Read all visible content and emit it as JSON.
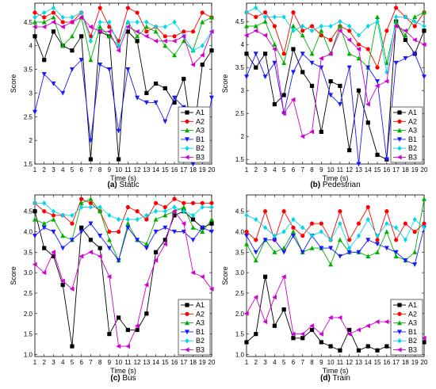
{
  "series_styles": [
    {
      "name": "A1",
      "color": "#000000",
      "marker": "square"
    },
    {
      "name": "A2",
      "color": "#ff0000",
      "marker": "circle"
    },
    {
      "name": "A3",
      "color": "#00b000",
      "marker": "triangle-up"
    },
    {
      "name": "B1",
      "color": "#1a1aff",
      "marker": "triangle-down"
    },
    {
      "name": "B2",
      "color": "#00d8e8",
      "marker": "diamond"
    },
    {
      "name": "B3",
      "color": "#d000d0",
      "marker": "triangle-left"
    }
  ],
  "chart_data": [
    {
      "type": "line",
      "caption_letter": "(a)",
      "caption_text": " Static",
      "xlabel": "Time (s)",
      "ylabel": "Score",
      "x": [
        1,
        2,
        3,
        4,
        5,
        6,
        7,
        8,
        9,
        10,
        11,
        12,
        13,
        14,
        15,
        16,
        17,
        18,
        19,
        20
      ],
      "xlim": [
        1,
        20
      ],
      "ylim": [
        1.5,
        4.9
      ],
      "yticks": [
        "1.5",
        "2",
        "2.5",
        "3",
        "3.5",
        "4",
        "4.5"
      ],
      "ytick_values": [
        1.5,
        2,
        2.5,
        3,
        3.5,
        4,
        4.5
      ],
      "legend": "bottom-right",
      "series": [
        {
          "name": "A1",
          "values": [
            4.2,
            3.7,
            4.3,
            4.0,
            3.9,
            4.2,
            1.6,
            4.3,
            4.2,
            1.6,
            4.3,
            4.1,
            3.0,
            3.2,
            3.1,
            2.8,
            3.3,
            2.0,
            3.6,
            3.9
          ]
        },
        {
          "name": "A2",
          "values": [
            4.7,
            4.6,
            4.7,
            4.5,
            4.5,
            4.7,
            4.2,
            4.8,
            4.4,
            4.1,
            4.8,
            4.7,
            4.3,
            4.4,
            4.2,
            4.2,
            4.3,
            4.3,
            4.7,
            4.6
          ]
        },
        {
          "name": "A3",
          "values": [
            4.5,
            4.5,
            4.6,
            4.0,
            4.2,
            4.6,
            3.7,
            4.4,
            4.2,
            4.0,
            4.5,
            4.2,
            4.4,
            4.3,
            4.0,
            3.8,
            4.1,
            3.9,
            4.5,
            4.6
          ]
        },
        {
          "name": "B1",
          "values": [
            2.6,
            3.4,
            3.2,
            3.0,
            3.5,
            3.7,
            2.0,
            3.6,
            3.5,
            2.2,
            3.5,
            2.9,
            2.8,
            2.8,
            2.4,
            2.9,
            2.7,
            1.5,
            1.8,
            2.9
          ]
        },
        {
          "name": "B2",
          "values": [
            4.6,
            4.7,
            4.8,
            4.6,
            4.6,
            4.7,
            4.1,
            4.5,
            4.5,
            4.0,
            4.5,
            4.5,
            4.5,
            4.4,
            4.4,
            4.5,
            4.2,
            3.9,
            4.0,
            4.3
          ]
        },
        {
          "name": "B3",
          "values": [
            4.4,
            4.4,
            4.5,
            4.4,
            4.5,
            4.6,
            4.4,
            4.3,
            4.3,
            3.9,
            4.4,
            4.3,
            4.2,
            4.1,
            4.1,
            4.1,
            4.2,
            3.6,
            3.8,
            4.3
          ]
        }
      ]
    },
    {
      "type": "line",
      "caption_letter": "(b)",
      "caption_text": " Pedestrian",
      "xlabel": "Time (s)",
      "ylabel": "Score",
      "x": [
        1,
        2,
        3,
        4,
        5,
        6,
        7,
        8,
        9,
        10,
        11,
        12,
        13,
        14,
        15,
        16,
        17,
        18,
        19,
        20
      ],
      "xlim": [
        1,
        20
      ],
      "ylim": [
        1.4,
        4.9
      ],
      "yticks": [
        "1.5",
        "2",
        "2.5",
        "3",
        "3.5",
        "4",
        "4.5"
      ],
      "ytick_values": [
        1.5,
        2,
        2.5,
        3,
        3.5,
        4,
        4.5
      ],
      "legend": "bottom-right",
      "series": [
        {
          "name": "A1",
          "values": [
            3.8,
            3.5,
            3.8,
            2.7,
            2.9,
            3.9,
            3.4,
            3.1,
            2.1,
            3.2,
            3.1,
            1.7,
            3.0,
            2.3,
            1.6,
            1.5,
            4.5,
            4.1,
            3.8,
            4.3
          ]
        },
        {
          "name": "A2",
          "values": [
            4.7,
            4.6,
            4.7,
            4.4,
            3.8,
            4.7,
            4.3,
            4.4,
            4.2,
            4.1,
            4.4,
            4.3,
            4.0,
            3.9,
            3.5,
            4.3,
            4.8,
            4.6,
            4.4,
            4.7
          ]
        },
        {
          "name": "A3",
          "values": [
            4.4,
            4.4,
            4.5,
            4.0,
            3.6,
            4.4,
            4.2,
            3.8,
            4.3,
            3.8,
            4.4,
            3.8,
            3.7,
            3.5,
            4.6,
            3.6,
            4.5,
            4.2,
            4.6,
            4.7
          ]
        },
        {
          "name": "B1",
          "values": [
            3.3,
            3.8,
            3.3,
            3.6,
            2.5,
            3.4,
            3.8,
            3.6,
            3.5,
            2.9,
            2.7,
            3.5,
            1.4,
            3.5,
            3.2,
            1.5,
            3.6,
            3.7,
            3.8,
            3.3
          ]
        },
        {
          "name": "B2",
          "values": [
            4.7,
            4.8,
            4.6,
            4.6,
            4.6,
            4.3,
            4.4,
            4.3,
            4.4,
            4.4,
            4.5,
            4.4,
            4.2,
            4.4,
            4.5,
            3.4,
            4.6,
            4.6,
            4.5,
            4.4
          ]
        },
        {
          "name": "B3",
          "values": [
            4.2,
            4.3,
            4.2,
            3.9,
            2.5,
            2.8,
            2.0,
            2.1,
            3.7,
            3.8,
            4.3,
            4.1,
            3.9,
            2.7,
            3.1,
            3.2,
            4.4,
            4.3,
            4.1,
            4.0
          ]
        }
      ]
    },
    {
      "type": "line",
      "caption_letter": "(c)",
      "caption_text": " Bus",
      "xlabel": "Time (s)",
      "ylabel": "Score",
      "x": [
        1,
        2,
        3,
        4,
        5,
        6,
        7,
        8,
        9,
        10,
        11,
        12,
        13,
        14,
        15,
        16,
        17,
        18,
        19,
        20
      ],
      "xlim": [
        1,
        20
      ],
      "ylim": [
        0.95,
        4.9
      ],
      "yticks": [
        "1.0",
        "1.5",
        "2.0",
        "2.5",
        "3.0",
        "3.5",
        "4.0",
        "4.5"
      ],
      "ytick_values": [
        1.0,
        1.5,
        2.0,
        2.5,
        3.0,
        3.5,
        4.0,
        4.5
      ],
      "legend": "bottom-right",
      "series": [
        {
          "name": "A1",
          "values": [
            4.5,
            3.6,
            3.4,
            2.7,
            1.2,
            4.1,
            3.8,
            3.6,
            1.5,
            1.9,
            1.6,
            1.6,
            2.0,
            3.5,
            3.8,
            4.4,
            4.5,
            4.3,
            4.1,
            4.2
          ]
        },
        {
          "name": "A2",
          "values": [
            4.7,
            4.5,
            4.4,
            4.4,
            4.2,
            4.8,
            4.7,
            4.5,
            4.0,
            4.0,
            4.6,
            4.5,
            4.3,
            4.7,
            4.6,
            4.8,
            4.7,
            4.7,
            4.7,
            4.7
          ]
        },
        {
          "name": "A3",
          "values": [
            4.3,
            4.2,
            4.3,
            3.9,
            3.8,
            4.7,
            4.8,
            4.5,
            3.8,
            3.3,
            4.2,
            3.8,
            3.7,
            4.3,
            4.4,
            4.5,
            4.6,
            4.1,
            4.0,
            4.3
          ]
        },
        {
          "name": "B1",
          "values": [
            3.9,
            4.1,
            4.0,
            3.6,
            3.8,
            4.0,
            4.2,
            3.9,
            3.6,
            3.3,
            4.1,
            3.8,
            3.6,
            4.0,
            4.1,
            4.0,
            4.0,
            3.8,
            4.1,
            4.0
          ]
        },
        {
          "name": "B2",
          "values": [
            4.7,
            4.7,
            4.5,
            4.4,
            4.4,
            4.6,
            4.6,
            4.6,
            4.4,
            4.3,
            4.3,
            4.3,
            4.4,
            4.5,
            4.5,
            4.6,
            4.5,
            4.4,
            4.6,
            4.6
          ]
        },
        {
          "name": "B3",
          "values": [
            3.2,
            3.0,
            3.5,
            2.8,
            2.6,
            3.4,
            3.5,
            3.4,
            2.9,
            1.2,
            1.2,
            1.7,
            2.7,
            3.3,
            3.7,
            4.5,
            4.2,
            3.0,
            2.9,
            2.6
          ]
        }
      ]
    },
    {
      "type": "line",
      "caption_letter": "(d)",
      "caption_text": " Train",
      "xlabel": "Time (s)",
      "ylabel": "Score",
      "x": [
        1,
        2,
        3,
        4,
        5,
        6,
        7,
        8,
        9,
        10,
        11,
        12,
        13,
        14,
        15,
        16,
        17,
        18,
        19,
        20
      ],
      "xlim": [
        1,
        20
      ],
      "ylim": [
        0.95,
        4.9
      ],
      "yticks": [
        "1.0",
        "1.5",
        "2.0",
        "2.5",
        "3.0",
        "3.5",
        "4.0",
        "4.5"
      ],
      "ytick_values": [
        1.0,
        1.5,
        2.0,
        2.5,
        3.0,
        3.5,
        4.0,
        4.5
      ],
      "legend": "bottom-right",
      "series": [
        {
          "name": "A1",
          "values": [
            1.3,
            1.5,
            2.9,
            1.7,
            2.1,
            1.4,
            1.4,
            1.6,
            1.3,
            1.2,
            1.1,
            1.6,
            1.1,
            1.2,
            1.1,
            1.2,
            1.1,
            1.1,
            1.2,
            1.3
          ]
        },
        {
          "name": "A2",
          "values": [
            4.0,
            3.8,
            4.5,
            3.8,
            4.5,
            4.1,
            3.9,
            4.2,
            4.2,
            3.8,
            4.5,
            3.8,
            4.2,
            4.6,
            3.8,
            4.5,
            3.8,
            4.2,
            4.0,
            4.2
          ]
        },
        {
          "name": "A3",
          "values": [
            3.7,
            3.3,
            3.8,
            3.5,
            3.6,
            4.0,
            3.5,
            3.6,
            3.6,
            3.2,
            3.8,
            3.5,
            3.5,
            3.4,
            3.5,
            4.0,
            3.4,
            3.3,
            3.5,
            4.8
          ]
        },
        {
          "name": "B1",
          "values": [
            3.9,
            3.5,
            3.8,
            3.8,
            3.5,
            3.9,
            3.5,
            3.9,
            3.6,
            3.6,
            3.4,
            3.5,
            3.5,
            3.8,
            3.7,
            3.6,
            3.5,
            3.3,
            3.2,
            4.1
          ]
        },
        {
          "name": "B2",
          "values": [
            4.4,
            4.3,
            4.1,
            3.9,
            4.0,
            4.3,
            4.1,
            3.9,
            4.0,
            3.8,
            4.2,
            3.6,
            3.9,
            4.3,
            3.9,
            4.2,
            4.1,
            3.8,
            4.3,
            4.1
          ]
        },
        {
          "name": "B3",
          "values": [
            2.0,
            2.4,
            1.8,
            2.4,
            2.9,
            1.5,
            1.5,
            1.7,
            1.5,
            1.9,
            1.9,
            1.5,
            1.6,
            1.7,
            1.8,
            1.8,
            1.8,
            1.6,
            1.5,
            1.4
          ]
        }
      ]
    }
  ]
}
